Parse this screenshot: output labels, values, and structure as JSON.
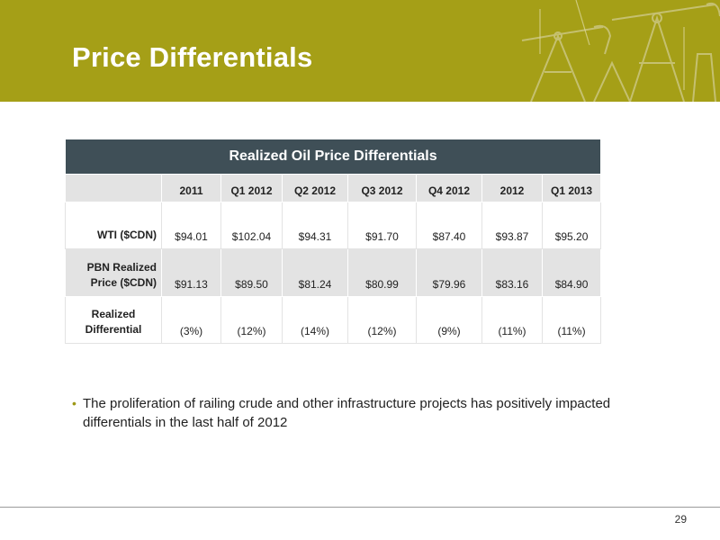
{
  "slide": {
    "title": "Price Differentials",
    "page_number": "29"
  },
  "table": {
    "title": "Realized Oil Price Differentials",
    "columns": [
      "2011",
      "Q1 2012",
      "Q2 2012",
      "Q3 2012",
      "Q4 2012",
      "2012",
      "Q1 2013"
    ],
    "rows": [
      {
        "label": "WTI ($CDN)",
        "values": [
          "$94.01",
          "$102.04",
          "$94.31",
          "$91.70",
          "$87.40",
          "$93.87",
          "$95.20"
        ]
      },
      {
        "label_line1": "PBN Realized",
        "label_line2": "Price ($CDN)",
        "values": [
          "$91.13",
          "$89.50",
          "$81.24",
          "$80.99",
          "$79.96",
          "$83.16",
          "$84.90"
        ]
      },
      {
        "label_line1": "Realized",
        "label_line2": "Differential",
        "values": [
          "(3%)",
          "(12%)",
          "(14%)",
          "(12%)",
          "(9%)",
          "(11%)",
          "(11%)"
        ]
      }
    ]
  },
  "bullets": [
    {
      "text": "The proliferation of railing crude and other infrastructure projects has positively impacted differentials in the last half of 2012"
    }
  ],
  "colors": {
    "header_bg": "#a59f17",
    "table_title_bg": "#3f4f57",
    "row_shade": "#e3e3e3",
    "bullet_accent": "#9d9816"
  }
}
